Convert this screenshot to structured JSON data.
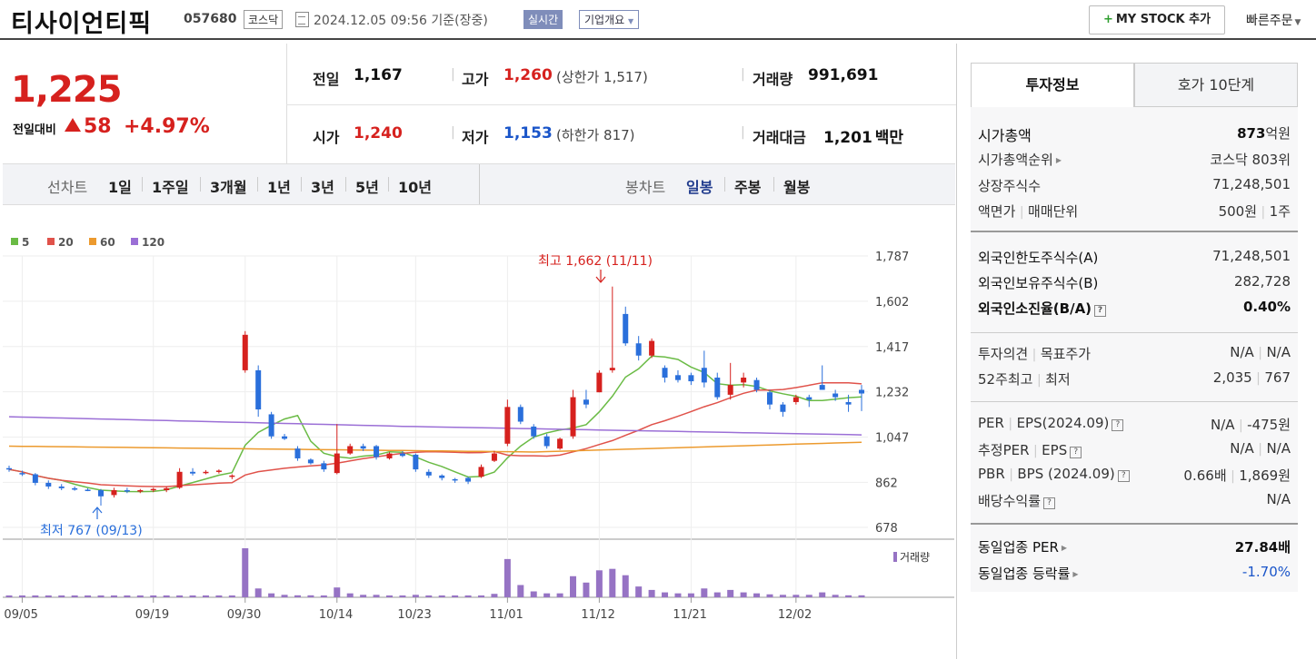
{
  "header": {
    "stock_name": "티사이언티픽",
    "stock_code": "057680",
    "market": "코스닥",
    "datetime": "2024.12.05 09:56  기준(장중)",
    "realtime": "실시간",
    "company_overview": "기업개요",
    "my_stock": "MY STOCK 추가",
    "quick_order": "빠른주문"
  },
  "price": {
    "current": "1,225",
    "change_label": "전일대비",
    "change_amount": "58",
    "change_pct": "+4.97%",
    "direction": "up"
  },
  "quote": {
    "prev_label": "전일",
    "prev": "1,167",
    "high_label": "고가",
    "high": "1,260",
    "upper_limit": "(상한가 1,517)",
    "volume_label": "거래량",
    "volume": "991,691",
    "open_label": "시가",
    "open": "1,240",
    "low_label": "저가",
    "low": "1,153",
    "lower_limit": "(하한가 817)",
    "amount_label": "거래대금",
    "amount": "1,201",
    "amount_unit": "백만"
  },
  "line_chart_tabs": {
    "label": "선차트",
    "items": [
      "1일",
      "1주일",
      "3개월",
      "1년",
      "3년",
      "5년",
      "10년"
    ]
  },
  "candle_tabs": {
    "label": "봉차트",
    "items": [
      "일봉",
      "주봉",
      "월봉"
    ],
    "active": "일봉"
  },
  "chart_data": {
    "type": "candlestick",
    "legend": [
      {
        "name": "5",
        "color": "#6abb45"
      },
      {
        "name": "20",
        "color": "#e0524a"
      },
      {
        "name": "60",
        "color": "#ec9a2e"
      },
      {
        "name": "120",
        "color": "#9b6fd6"
      }
    ],
    "y_ticks": [
      "1,787",
      "1,602",
      "1,417",
      "1,232",
      "1,047",
      "862",
      "678"
    ],
    "ylim": [
      678,
      1787
    ],
    "x_ticks": [
      "09/05",
      "09/19",
      "09/30",
      "10/14",
      "10/23",
      "11/01",
      "11/12",
      "11/21",
      "12/02"
    ],
    "high_annotation": "최고 1,662 (11/11)",
    "low_annotation": "최저 767 (09/13)",
    "volume_label": "거래량",
    "candles": [
      [
        920,
        930,
        905,
        915
      ],
      [
        900,
        910,
        888,
        895
      ],
      [
        895,
        900,
        850,
        860
      ],
      [
        860,
        870,
        835,
        845
      ],
      [
        845,
        855,
        830,
        838
      ],
      [
        838,
        845,
        828,
        832
      ],
      [
        832,
        838,
        826,
        830
      ],
      [
        830,
        835,
        767,
        805
      ],
      [
        810,
        840,
        800,
        830
      ],
      [
        830,
        840,
        818,
        825
      ],
      [
        825,
        835,
        818,
        830
      ],
      [
        830,
        840,
        822,
        835
      ],
      [
        830,
        845,
        822,
        838
      ],
      [
        840,
        920,
        835,
        905
      ],
      [
        905,
        920,
        890,
        898
      ],
      [
        900,
        912,
        895,
        905
      ],
      [
        905,
        915,
        898,
        910
      ],
      [
        885,
        895,
        875,
        890
      ],
      [
        1320,
        1480,
        1310,
        1465
      ],
      [
        1320,
        1340,
        1130,
        1160
      ],
      [
        1140,
        1150,
        1040,
        1050
      ],
      [
        1050,
        1060,
        1035,
        1040
      ],
      [
        1000,
        1010,
        950,
        960
      ],
      [
        955,
        960,
        935,
        940
      ],
      [
        940,
        950,
        905,
        915
      ],
      [
        900,
        1100,
        895,
        980
      ],
      [
        980,
        1020,
        975,
        1010
      ],
      [
        1010,
        1020,
        990,
        1000
      ],
      [
        1010,
        1015,
        955,
        965
      ],
      [
        960,
        985,
        955,
        980
      ],
      [
        980,
        990,
        965,
        970
      ],
      [
        975,
        980,
        905,
        915
      ],
      [
        905,
        915,
        880,
        890
      ],
      [
        890,
        895,
        870,
        880
      ],
      [
        875,
        880,
        860,
        870
      ],
      [
        880,
        885,
        855,
        865
      ],
      [
        885,
        935,
        880,
        925
      ],
      [
        950,
        990,
        945,
        980
      ],
      [
        1020,
        1200,
        1010,
        1170
      ],
      [
        1170,
        1180,
        1100,
        1110
      ],
      [
        1090,
        1100,
        1040,
        1050
      ],
      [
        1050,
        1060,
        1000,
        1010
      ],
      [
        1000,
        1045,
        995,
        1040
      ],
      [
        1050,
        1240,
        1040,
        1210
      ],
      [
        1200,
        1240,
        1165,
        1180
      ],
      [
        1230,
        1320,
        1230,
        1310
      ],
      [
        1320,
        1662,
        1310,
        1330
      ],
      [
        1550,
        1580,
        1420,
        1430
      ],
      [
        1430,
        1460,
        1360,
        1380
      ],
      [
        1380,
        1450,
        1370,
        1440
      ],
      [
        1330,
        1340,
        1270,
        1290
      ],
      [
        1300,
        1320,
        1270,
        1280
      ],
      [
        1300,
        1310,
        1260,
        1275
      ],
      [
        1330,
        1400,
        1250,
        1270
      ],
      [
        1290,
        1310,
        1200,
        1210
      ],
      [
        1220,
        1350,
        1200,
        1260
      ],
      [
        1270,
        1310,
        1250,
        1290
      ],
      [
        1280,
        1290,
        1230,
        1240
      ],
      [
        1230,
        1240,
        1160,
        1180
      ],
      [
        1180,
        1190,
        1130,
        1150
      ],
      [
        1190,
        1220,
        1180,
        1210
      ],
      [
        1210,
        1220,
        1170,
        1200
      ],
      [
        1260,
        1340,
        1240,
        1240
      ],
      [
        1225,
        1240,
        1195,
        1210
      ],
      [
        1190,
        1220,
        1150,
        1180
      ],
      [
        1240,
        1260,
        1153,
        1225
      ]
    ],
    "volumes": [
      0.02,
      0.01,
      0.01,
      0.01,
      0.01,
      0.01,
      0.01,
      0.02,
      0.01,
      0.01,
      0.01,
      0.01,
      0.01,
      0.02,
      0.01,
      0.01,
      0.01,
      0.01,
      1.0,
      0.18,
      0.08,
      0.05,
      0.04,
      0.04,
      0.03,
      0.2,
      0.08,
      0.05,
      0.05,
      0.03,
      0.03,
      0.05,
      0.02,
      0.02,
      0.02,
      0.02,
      0.03,
      0.07,
      0.78,
      0.25,
      0.12,
      0.08,
      0.08,
      0.43,
      0.3,
      0.55,
      0.58,
      0.45,
      0.22,
      0.15,
      0.1,
      0.08,
      0.08,
      0.18,
      0.1,
      0.15,
      0.1,
      0.08,
      0.06,
      0.05,
      0.05,
      0.05,
      0.1,
      0.05,
      0.04,
      0.04
    ]
  },
  "invest_tabs": {
    "tab1": "투자정보",
    "tab2": "호가 10단계"
  },
  "invest": {
    "market_cap_label": "시가총액",
    "market_cap_value": "873",
    "market_cap_unit": "억원",
    "rank_label": "시가총액순위",
    "rank_value": "코스닥 803위",
    "shares_label": "상장주식수",
    "shares_value": "71,248,501",
    "par_label": "액면가",
    "trade_unit_label": "매매단위",
    "par_value": "500원",
    "trade_unit_value": "1주",
    "foreign_limit_label": "외국인한도주식수(A)",
    "foreign_limit_value": "71,248,501",
    "foreign_held_label": "외국인보유주식수(B)",
    "foreign_held_value": "282,728",
    "foreign_ratio_label": "외국인소진율(B/A)",
    "foreign_ratio_value": "0.40%",
    "opinion_label": "투자의견",
    "target_label": "목표주가",
    "opinion_value": "N/A",
    "target_value": "N/A",
    "high52_label": "52주최고",
    "low52_label": "최저",
    "high52_value": "2,035",
    "low52_value": "767",
    "per_label": "PER",
    "eps_label": "EPS(2024.09)",
    "per_value": "N/A",
    "eps_value": "-475원",
    "est_per_label": "추정PER",
    "est_eps_label": "EPS",
    "est_per_value": "N/A",
    "est_eps_value": "N/A",
    "pbr_label": "PBR",
    "bps_label": "BPS (2024.09)",
    "pbr_value": "0.66배",
    "bps_value": "1,869원",
    "dividend_label": "배당수익률",
    "dividend_value": "N/A",
    "sector_per_label": "동일업종 PER",
    "sector_per_value": "27.84배",
    "sector_change_label": "동일업종 등락률",
    "sector_change_value": "-1.70%"
  }
}
